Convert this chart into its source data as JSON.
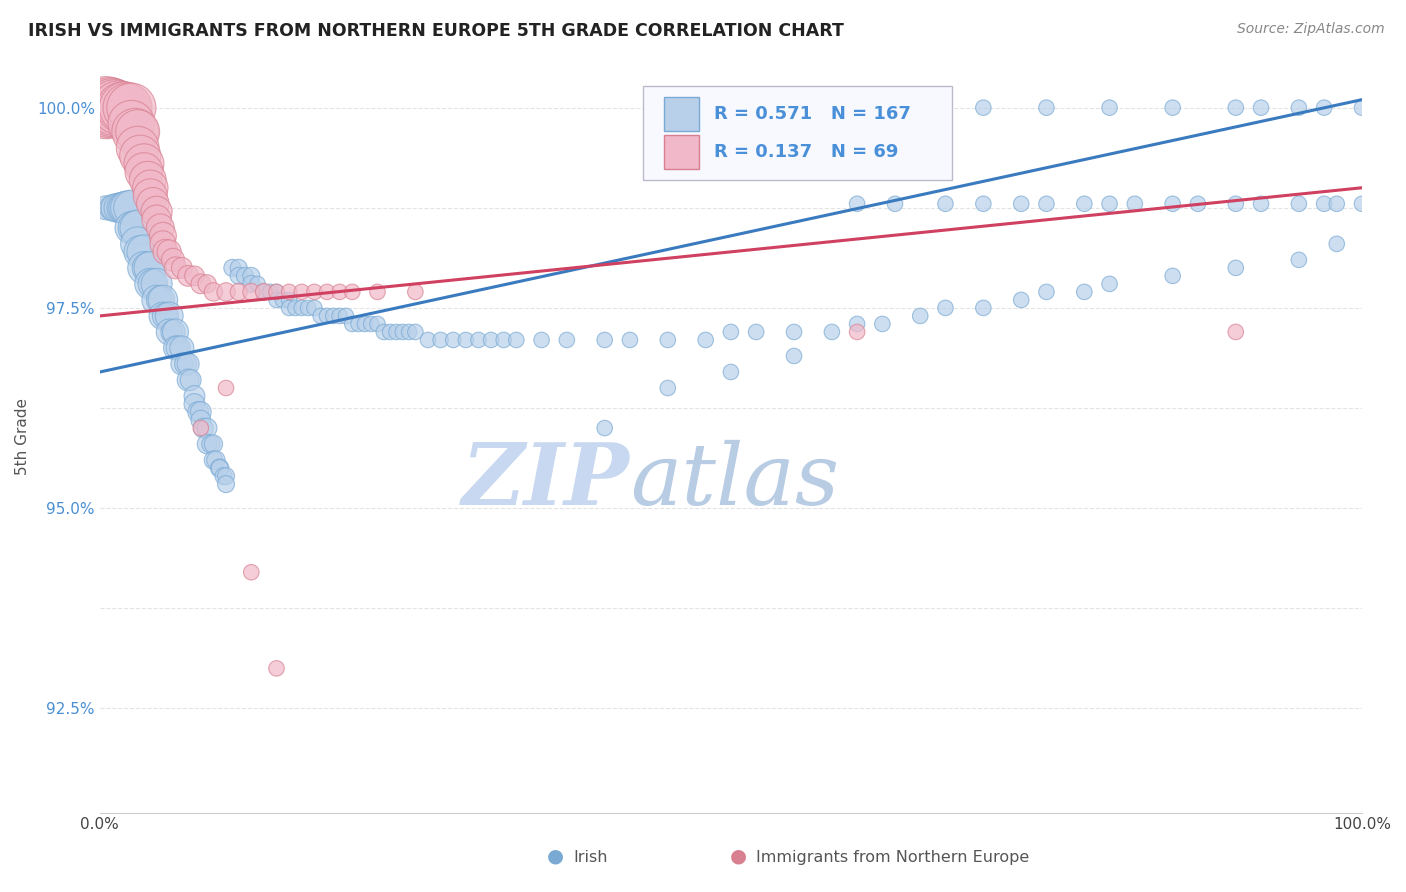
{
  "title": "IRISH VS IMMIGRANTS FROM NORTHERN EUROPE 5TH GRADE CORRELATION CHART",
  "source": "Source: ZipAtlas.com",
  "ylabel": "5th Grade",
  "xlim": [
    0.0,
    1.0
  ],
  "ylim": [
    0.912,
    1.006
  ],
  "ytick_positions": [
    0.925,
    0.9375,
    0.95,
    0.9625,
    0.975,
    0.9875,
    1.0
  ],
  "ytick_labels": [
    "92.5%",
    "",
    "95.0%",
    "",
    "97.5%",
    "",
    "100.0%"
  ],
  "xtick_positions": [
    0.0,
    0.25,
    0.5,
    0.75,
    1.0
  ],
  "xtick_labels": [
    "0.0%",
    "",
    "",
    "",
    "100.0%"
  ],
  "background_color": "#ffffff",
  "grid_color": "#dddddd",
  "irish_color": "#b8d0ea",
  "irish_edge_color": "#7aaad4",
  "northern_europe_color": "#f0b8c8",
  "northern_europe_edge_color": "#d88090",
  "irish_line_color": "#3a7abf",
  "northern_europe_line_color": "#d04060",
  "legend_text_color": "#4a90d9",
  "R_irish": 0.571,
  "N_irish": 167,
  "R_northern": 0.137,
  "N_northern": 69,
  "irish_line_x": [
    0.0,
    1.0
  ],
  "irish_line_y": [
    0.967,
    1.001
  ],
  "northern_line_x": [
    0.0,
    1.0
  ],
  "northern_line_y": [
    0.974,
    0.99
  ],
  "watermark_zip": "ZIP",
  "watermark_atlas": "atlas",
  "watermark_color_zip": "#cddff5",
  "watermark_color_atlas": "#c0d8e8",
  "legend_box_color": "#f8f8ff",
  "legend_box_edge_color": "#bbbbcc",
  "irish_scatter_x": [
    0.005,
    0.01,
    0.012,
    0.015,
    0.018,
    0.02,
    0.022,
    0.025,
    0.025,
    0.028,
    0.03,
    0.03,
    0.032,
    0.035,
    0.035,
    0.038,
    0.04,
    0.04,
    0.042,
    0.045,
    0.045,
    0.048,
    0.05,
    0.05,
    0.052,
    0.055,
    0.055,
    0.058,
    0.06,
    0.06,
    0.062,
    0.065,
    0.065,
    0.068,
    0.07,
    0.07,
    0.072,
    0.075,
    0.075,
    0.078,
    0.08,
    0.08,
    0.082,
    0.085,
    0.085,
    0.088,
    0.09,
    0.09,
    0.092,
    0.095,
    0.095,
    0.098,
    0.1,
    0.1,
    0.105,
    0.11,
    0.11,
    0.115,
    0.12,
    0.12,
    0.125,
    0.13,
    0.13,
    0.135,
    0.14,
    0.14,
    0.145,
    0.15,
    0.15,
    0.155,
    0.16,
    0.165,
    0.17,
    0.175,
    0.18,
    0.185,
    0.19,
    0.195,
    0.2,
    0.205,
    0.21,
    0.215,
    0.22,
    0.225,
    0.23,
    0.235,
    0.24,
    0.245,
    0.25,
    0.26,
    0.27,
    0.28,
    0.29,
    0.3,
    0.31,
    0.32,
    0.33,
    0.35,
    0.37,
    0.4,
    0.42,
    0.45,
    0.48,
    0.5,
    0.52,
    0.55,
    0.58,
    0.6,
    0.62,
    0.65,
    0.67,
    0.7,
    0.73,
    0.75,
    0.78,
    0.8,
    0.85,
    0.9,
    0.95,
    0.98,
    0.65,
    0.7,
    0.75,
    0.8,
    0.85,
    0.9,
    0.92,
    0.95,
    0.97,
    1.0,
    0.6,
    0.63,
    0.67,
    0.7,
    0.73,
    0.75,
    0.78,
    0.8,
    0.82,
    0.85,
    0.87,
    0.9,
    0.92,
    0.95,
    0.97,
    0.98,
    1.0,
    0.4,
    0.45,
    0.5,
    0.55
  ],
  "irish_scatter_y": [
    0.9875,
    0.9875,
    0.9875,
    0.9875,
    0.9875,
    0.9875,
    0.9875,
    0.9875,
    0.985,
    0.985,
    0.985,
    0.983,
    0.982,
    0.982,
    0.98,
    0.98,
    0.98,
    0.978,
    0.978,
    0.978,
    0.976,
    0.976,
    0.976,
    0.974,
    0.974,
    0.974,
    0.972,
    0.972,
    0.972,
    0.97,
    0.97,
    0.97,
    0.968,
    0.968,
    0.968,
    0.966,
    0.966,
    0.964,
    0.963,
    0.962,
    0.962,
    0.961,
    0.96,
    0.96,
    0.958,
    0.958,
    0.958,
    0.956,
    0.956,
    0.955,
    0.955,
    0.954,
    0.954,
    0.953,
    0.98,
    0.98,
    0.979,
    0.979,
    0.979,
    0.978,
    0.978,
    0.977,
    0.977,
    0.977,
    0.977,
    0.976,
    0.976,
    0.976,
    0.975,
    0.975,
    0.975,
    0.975,
    0.975,
    0.974,
    0.974,
    0.974,
    0.974,
    0.974,
    0.973,
    0.973,
    0.973,
    0.973,
    0.973,
    0.972,
    0.972,
    0.972,
    0.972,
    0.972,
    0.972,
    0.971,
    0.971,
    0.971,
    0.971,
    0.971,
    0.971,
    0.971,
    0.971,
    0.971,
    0.971,
    0.971,
    0.971,
    0.971,
    0.971,
    0.972,
    0.972,
    0.972,
    0.972,
    0.973,
    0.973,
    0.974,
    0.975,
    0.975,
    0.976,
    0.977,
    0.977,
    0.978,
    0.979,
    0.98,
    0.981,
    0.983,
    1.0,
    1.0,
    1.0,
    1.0,
    1.0,
    1.0,
    1.0,
    1.0,
    1.0,
    1.0,
    0.988,
    0.988,
    0.988,
    0.988,
    0.988,
    0.988,
    0.988,
    0.988,
    0.988,
    0.988,
    0.988,
    0.988,
    0.988,
    0.988,
    0.988,
    0.988,
    0.988,
    0.96,
    0.965,
    0.967,
    0.969
  ],
  "irish_scatter_size": [
    12,
    14,
    16,
    18,
    20,
    22,
    24,
    26,
    22,
    24,
    26,
    24,
    22,
    24,
    22,
    20,
    22,
    20,
    18,
    20,
    18,
    16,
    18,
    16,
    14,
    16,
    14,
    12,
    14,
    12,
    12,
    12,
    10,
    10,
    10,
    10,
    9,
    9,
    9,
    9,
    9,
    8,
    8,
    8,
    8,
    7,
    7,
    7,
    7,
    7,
    6,
    6,
    6,
    6,
    6,
    6,
    6,
    6,
    6,
    6,
    5,
    5,
    5,
    5,
    5,
    5,
    5,
    5,
    5,
    5,
    5,
    5,
    5,
    5,
    5,
    5,
    5,
    5,
    5,
    5,
    5,
    5,
    5,
    5,
    5,
    5,
    5,
    5,
    5,
    5,
    5,
    5,
    5,
    5,
    5,
    5,
    5,
    5,
    5,
    5,
    5,
    5,
    5,
    5,
    5,
    5,
    5,
    5,
    5,
    5,
    5,
    5,
    5,
    5,
    5,
    5,
    5,
    5,
    5,
    5,
    5,
    5,
    5,
    5,
    5,
    5,
    5,
    5,
    5,
    5,
    5,
    5,
    5,
    5,
    5,
    5,
    5,
    5,
    5,
    5,
    5,
    5,
    5,
    5,
    5,
    5,
    5,
    5,
    5,
    5,
    5
  ],
  "northern_scatter_x": [
    0.005,
    0.008,
    0.01,
    0.012,
    0.015,
    0.018,
    0.02,
    0.022,
    0.025,
    0.025,
    0.028,
    0.03,
    0.03,
    0.032,
    0.035,
    0.035,
    0.038,
    0.04,
    0.04,
    0.042,
    0.045,
    0.045,
    0.048,
    0.05,
    0.05,
    0.052,
    0.055,
    0.058,
    0.06,
    0.065,
    0.07,
    0.075,
    0.08,
    0.085,
    0.09,
    0.1,
    0.11,
    0.12,
    0.13,
    0.14,
    0.15,
    0.16,
    0.17,
    0.18,
    0.19,
    0.2,
    0.22,
    0.25,
    0.08,
    0.1,
    0.12,
    0.14,
    0.6,
    0.9
  ],
  "northern_scatter_y": [
    1.0,
    1.0,
    1.0,
    1.0,
    1.0,
    1.0,
    1.0,
    1.0,
    1.0,
    0.998,
    0.997,
    0.997,
    0.995,
    0.994,
    0.993,
    0.992,
    0.991,
    0.99,
    0.989,
    0.988,
    0.987,
    0.986,
    0.985,
    0.984,
    0.983,
    0.982,
    0.982,
    0.981,
    0.98,
    0.98,
    0.979,
    0.979,
    0.978,
    0.978,
    0.977,
    0.977,
    0.977,
    0.977,
    0.977,
    0.977,
    0.977,
    0.977,
    0.977,
    0.977,
    0.977,
    0.977,
    0.977,
    0.977,
    0.96,
    0.965,
    0.942,
    0.93,
    0.972,
    0.972
  ],
  "northern_scatter_size": [
    80,
    75,
    70,
    65,
    60,
    55,
    55,
    50,
    50,
    45,
    45,
    40,
    38,
    35,
    33,
    30,
    28,
    26,
    24,
    22,
    20,
    18,
    16,
    15,
    14,
    13,
    12,
    11,
    10,
    9,
    9,
    8,
    8,
    7,
    7,
    7,
    6,
    6,
    6,
    5,
    5,
    5,
    5,
    5,
    5,
    5,
    5,
    5,
    5,
    5,
    5,
    5,
    5,
    5
  ]
}
